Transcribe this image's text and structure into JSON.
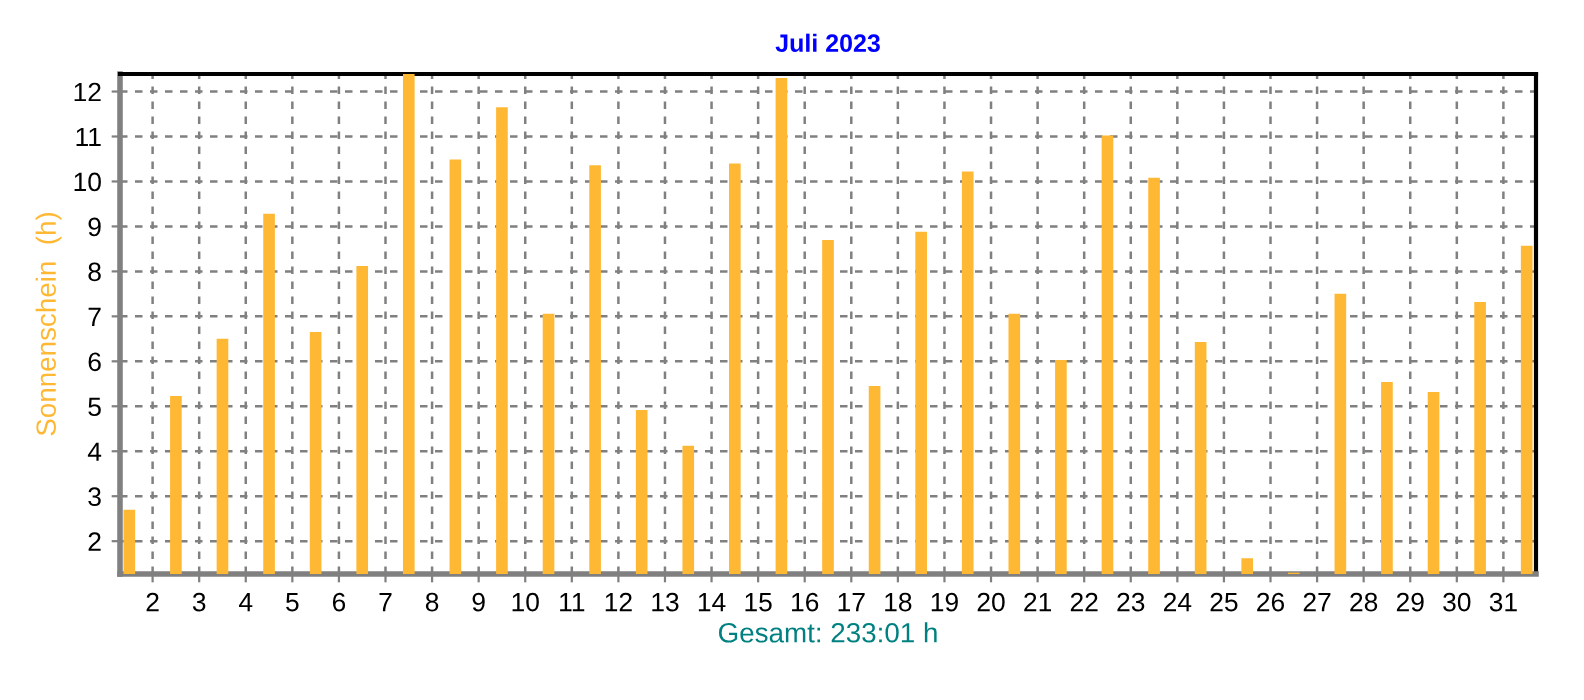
{
  "chart_data": {
    "type": "bar",
    "title": "Juli 2023",
    "ylabel": "Sonnenschein  (h)",
    "xlabel": "Gesamt: 233:01 h",
    "x": [
      1.5,
      2.5,
      3.5,
      4.5,
      5.5,
      6.5,
      7.5,
      8.5,
      9.5,
      10.5,
      11.5,
      12.5,
      13.5,
      14.5,
      15.5,
      16.5,
      17.5,
      18.5,
      19.5,
      20.5,
      21.5,
      22.5,
      23.5,
      24.5,
      25.5,
      26.5,
      27.5,
      28.5,
      29.5,
      30.5,
      31.5
    ],
    "values": [
      2.7,
      5.23,
      6.5,
      9.28,
      6.65,
      8.12,
      12.39,
      10.49,
      11.65,
      7.06,
      10.36,
      4.92,
      4.12,
      10.4,
      12.3,
      8.7,
      5.45,
      8.88,
      10.22,
      7.06,
      6.03,
      11.02,
      10.08,
      6.43,
      1.62,
      1.3,
      7.5,
      5.54,
      5.32,
      7.32,
      8.57
    ],
    "color": "#ffb833",
    "xlim": [
      1.3,
      31.7
    ],
    "xticks": [
      2,
      3,
      4,
      5,
      6,
      7,
      8,
      9,
      10,
      11,
      12,
      13,
      14,
      15,
      16,
      17,
      18,
      19,
      20,
      21,
      22,
      23,
      24,
      25,
      26,
      27,
      28,
      29,
      30,
      31
    ],
    "ylim": [
      1.27,
      12.39
    ],
    "yticks": [
      2,
      3,
      4,
      5,
      6,
      7,
      8,
      9,
      10,
      11,
      12
    ],
    "grid": true,
    "line_style": "dashed"
  }
}
